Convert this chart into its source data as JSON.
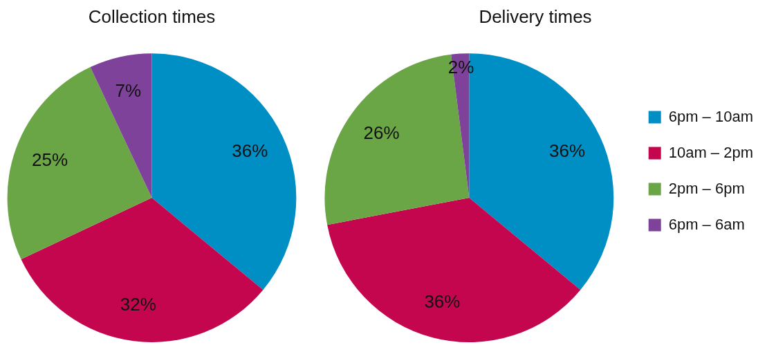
{
  "chart_data": [
    {
      "type": "pie",
      "title": "Collection times",
      "values": [
        36,
        32,
        25,
        7
      ],
      "value_labels": [
        "36%",
        "32%",
        "25%",
        "7%"
      ],
      "colors": [
        "#008fc5",
        "#c4064f",
        "#6aa645",
        "#7f429a"
      ],
      "legend": false
    },
    {
      "type": "pie",
      "title": "Delivery times",
      "categories": [
        "6pm – 10am",
        "10am – 2pm",
        "2pm – 6pm",
        "6pm – 6am"
      ],
      "values": [
        36,
        36,
        26,
        2
      ],
      "value_labels": [
        "36%",
        "36%",
        "26%",
        "2%"
      ],
      "colors": [
        "#008fc5",
        "#c4064f",
        "#6aa645",
        "#7f429a"
      ],
      "legend": "right"
    }
  ]
}
